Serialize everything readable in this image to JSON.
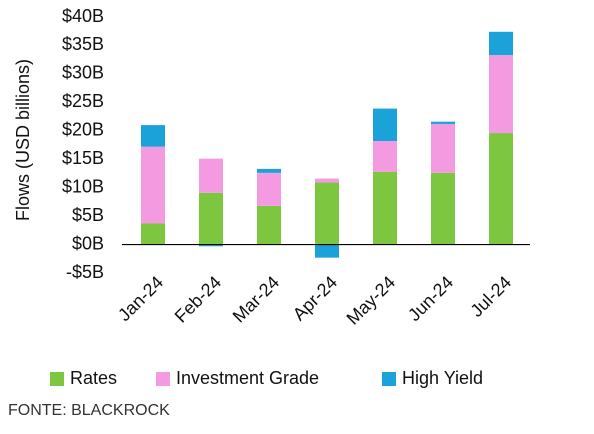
{
  "chart_data": {
    "type": "stacked_bar",
    "y_label": "Flows (USD billions)",
    "source": "FONTE: BLACKROCK",
    "categories": [
      "Jan-24",
      "Feb-24",
      "Mar-24",
      "Apr-24",
      "May-24",
      "Jun-24",
      "Jul-24"
    ],
    "series": [
      {
        "name": "Rates",
        "color": "#7dc63f",
        "values": [
          3.7,
          9.1,
          6.8,
          10.9,
          12.8,
          12.6,
          19.6
        ]
      },
      {
        "name": "Investment Grade",
        "color": "#f49ae0",
        "values": [
          13.5,
          6.0,
          5.8,
          0.7,
          5.4,
          8.6,
          13.7
        ]
      },
      {
        "name": "High Yield",
        "color": "#1ba3d9",
        "values": [
          3.8,
          -0.3,
          0.7,
          -2.3,
          5.7,
          0.4,
          4.1
        ]
      }
    ],
    "ylim": [
      -5,
      40
    ],
    "yticks": [
      {
        "value": -5,
        "label": "-$5B"
      },
      {
        "value": 0,
        "label": "$0B"
      },
      {
        "value": 5,
        "label": "$5B"
      },
      {
        "value": 10,
        "label": "$10B"
      },
      {
        "value": 15,
        "label": "$15B"
      },
      {
        "value": 20,
        "label": "$20B"
      },
      {
        "value": 25,
        "label": "$25B"
      },
      {
        "value": 30,
        "label": "$30B"
      },
      {
        "value": 35,
        "label": "$35B"
      },
      {
        "value": 40,
        "label": "$40B"
      }
    ],
    "grid": false,
    "legend": "bottom"
  }
}
